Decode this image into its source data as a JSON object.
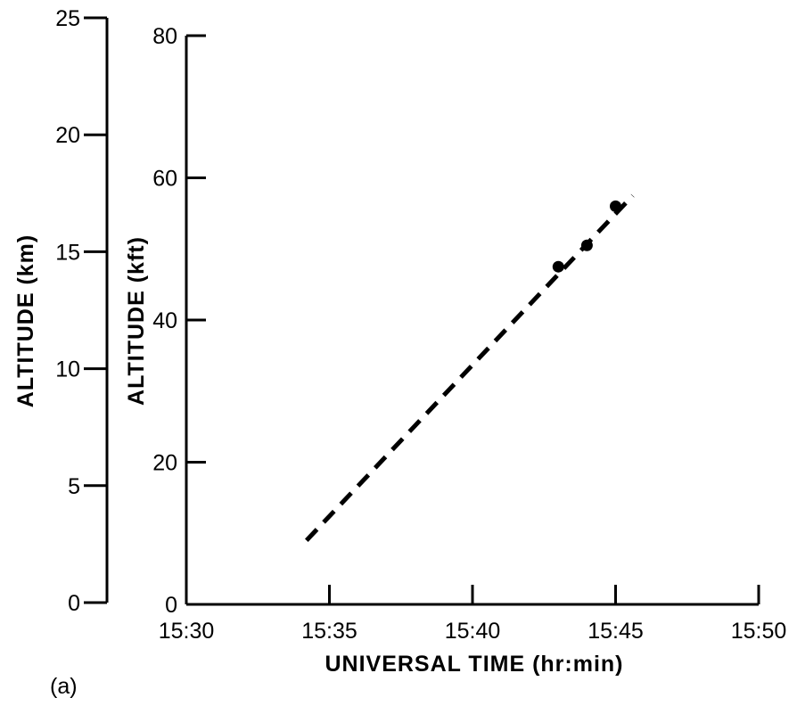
{
  "chart_data": {
    "type": "scatter",
    "panel_label": "(a)",
    "xlabel": "UNIVERSAL TIME (hr:min)",
    "ylabel": "ALTITUDE (kft)",
    "ylabel_secondary": "ALTITUDE (km)",
    "x_ticks": [
      "15:30",
      "15:35",
      "15:40",
      "15:45",
      "15:50"
    ],
    "x_tick_minutes": [
      0,
      5,
      10,
      15,
      20
    ],
    "xlim_minutes_after_1530": [
      0,
      20
    ],
    "y_ticks": [
      "0",
      "20",
      "40",
      "60",
      "80"
    ],
    "ylim": [
      0,
      80
    ],
    "y_secondary_ticks": [
      "0",
      "5",
      "10",
      "15",
      "20",
      "25"
    ],
    "ylim_secondary": [
      0,
      25
    ],
    "grid": false,
    "series": [
      {
        "points": [
          {
            "x": "15:43",
            "y": 47.5
          },
          {
            "x": "15:44",
            "y": 50.5
          },
          {
            "x": "15:45",
            "y": 56
          }
        ]
      }
    ],
    "trend_line": {
      "style": "dashed",
      "start": {
        "x": "15:34.2",
        "y": 9
      },
      "end": {
        "x": "15:45.6",
        "y": 57.5
      }
    }
  }
}
